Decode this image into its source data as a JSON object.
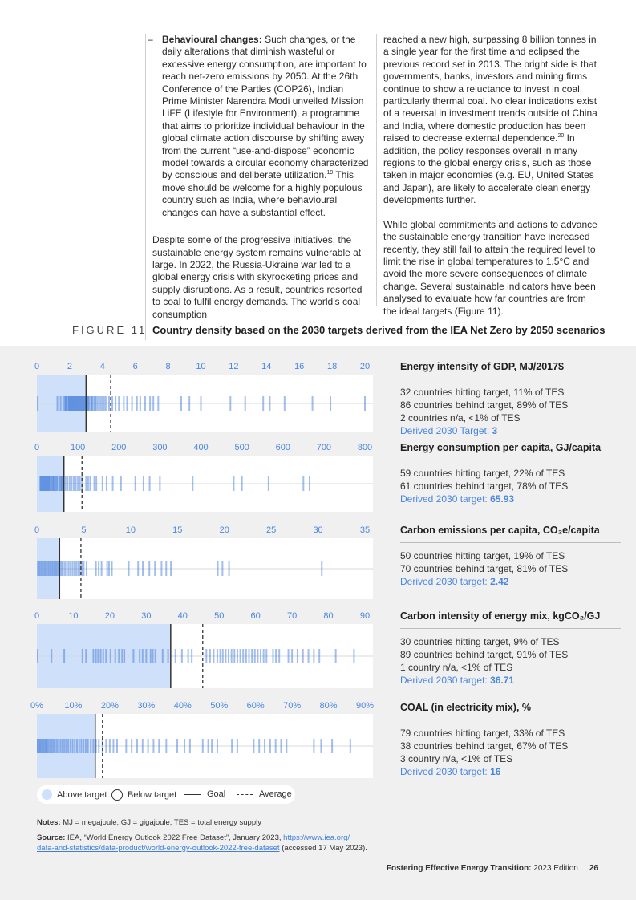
{
  "text": {
    "bullet_heading": "Behavioural changes:",
    "bullet_dash": "–",
    "bullet_body_1": "Such changes, or the daily alterations that diminish wasteful or excessive energy consumption, are important to reach net-zero emissions by 2050. At the 26th Conference of the Parties (COP26), Indian Prime Minister Narendra Modi unveiled Mission LiFE (Lifestyle for Environment), a programme that aims to prioritize individual behaviour in the global climate action discourse by shifting away from the current “use-and-dispose” economic model towards a circular economy characterized by conscious and deliberate utilization.",
    "bullet_sup": "19",
    "bullet_body_2": " This move should be welcome for a highly populous country such as India, where behavioural changes can have a substantial effect.",
    "left_para": "Despite some of the progressive initiatives, the sustainable energy system remains vulnerable at large. In 2022, the Russia-Ukraine war led to a global energy crisis with skyrocketing prices and supply disruptions. As a result, countries resorted to coal to fulfil energy demands. The world’s coal consumption",
    "right_para_1a": "reached a new high, surpassing 8 billion tonnes in a single year for the first time and eclipsed the previous record set in 2013. The bright side is that governments, banks, investors and mining firms continue to show a reluctance to invest in coal, particularly thermal coal. No clear indications exist of a reversal in investment trends outside of China and India, where domestic production has been raised to decrease external dependence.",
    "right_para_sup": "20",
    "right_para_1b": " In addition, the policy responses overall in many regions to the global energy crisis, such as those taken in major economies (e.g. EU, United States and Japan), are likely to accelerate clean energy developments further.",
    "right_para_2": "While global commitments and actions to advance the sustainable energy transition have increased recently, they still fail to attain the required level to limit the rise in global temperatures to 1.5°C and avoid the more severe consequences of climate change. Several sustainable indicators have been analysed to evaluate how far countries are from the ideal targets (Figure 11)."
  },
  "figure": {
    "label": "FIGURE 11",
    "title": "Country density based on the 2030 targets derived from the IEA Net Zero by 2050 scenarios"
  },
  "chart_data": [
    {
      "type": "strip",
      "title": "Energy intensity of GDP, MJ/2017$",
      "ticks": [
        "0",
        "2",
        "4",
        "6",
        "8",
        "10",
        "12",
        "14",
        "16",
        "18",
        "20"
      ],
      "xlim": [
        0,
        20
      ],
      "goal": 3,
      "average": 4.5,
      "values": [
        0.05,
        1.25,
        1.45,
        1.6,
        1.7,
        1.75,
        1.8,
        1.9,
        1.95,
        2.0,
        2.05,
        2.1,
        2.15,
        2.2,
        2.25,
        2.3,
        2.35,
        2.4,
        2.45,
        2.5,
        2.55,
        2.6,
        2.65,
        2.7,
        2.75,
        2.8,
        2.85,
        2.9,
        2.95,
        3.0,
        3.05,
        3.1,
        3.15,
        3.2,
        3.3,
        3.35,
        3.4,
        3.5,
        3.55,
        3.6,
        3.7,
        3.8,
        3.9,
        4.0,
        4.1,
        4.2,
        4.4,
        4.6,
        4.8,
        5.0,
        5.3,
        5.5,
        5.8,
        6.1,
        6.3,
        6.6,
        6.9,
        7.1,
        7.4,
        8.8,
        9.3,
        10.0,
        11.8,
        12.7,
        13.8,
        14.2,
        15.1,
        16.8,
        17.9,
        20.0
      ],
      "lines": [
        "32 countries hitting target, 11% of TES",
        "86 countries behind target, 89% of TES",
        "2 countries n/a, <1% of TES"
      ],
      "target_label": "Derived 2030 Target: ",
      "target_value": "3"
    },
    {
      "type": "strip",
      "title": "Energy consumption per capita, GJ/capita",
      "ticks": [
        "0",
        "100",
        "200",
        "300",
        "400",
        "500",
        "600",
        "700",
        "800"
      ],
      "xlim": [
        0,
        800
      ],
      "goal": 65.93,
      "average": 110,
      "values": [
        8,
        10,
        12,
        14,
        16,
        18,
        20,
        22,
        24,
        26,
        28,
        30,
        32,
        35,
        38,
        40,
        42,
        45,
        48,
        50,
        55,
        58,
        60,
        62,
        65,
        70,
        75,
        80,
        85,
        90,
        95,
        100,
        105,
        110,
        120,
        125,
        130,
        140,
        145,
        160,
        170,
        185,
        205,
        240,
        260,
        275,
        300,
        380,
        480,
        500,
        565,
        650,
        665
      ],
      "lines": [
        "59 countries hitting target, 22% of TES",
        "61 countries behind target, 78% of TES"
      ],
      "target_label": "Derived 2030 target: ",
      "target_value": "65.93"
    },
    {
      "type": "strip",
      "title": "Carbon emissions per capita, CO₂e/capita",
      "ticks": [
        "0",
        "5",
        "10",
        "15",
        "20",
        "25",
        "30",
        "35"
      ],
      "xlim": [
        0,
        35
      ],
      "goal": 2.42,
      "average": 4.7,
      "values": [
        0.1,
        0.25,
        0.4,
        0.55,
        0.7,
        0.85,
        1.0,
        1.15,
        1.3,
        1.45,
        1.6,
        1.75,
        1.9,
        2.05,
        2.2,
        2.35,
        2.5,
        2.65,
        2.8,
        3.0,
        3.2,
        3.4,
        3.6,
        3.8,
        4.0,
        4.2,
        4.4,
        4.6,
        4.8,
        5.0,
        5.3,
        6.3,
        6.6,
        6.9,
        7.5,
        7.7,
        8.0,
        9.8,
        10.8,
        11.3,
        12.0,
        12.6,
        13.3,
        13.8,
        14.3,
        19.3,
        19.8,
        20.5,
        30.4
      ],
      "lines": [
        "50 countries hitting target, 19% of TES",
        "70 countries behind target, 81% of TES"
      ],
      "target_label": "Derived 2030 target: ",
      "target_value": "2.42"
    },
    {
      "type": "strip",
      "title": "Carbon intensity of energy mix, kgCO₂/GJ",
      "ticks": [
        "0",
        "10",
        "20",
        "30",
        "40",
        "50",
        "60",
        "70",
        "80",
        "90"
      ],
      "xlim": [
        0,
        90
      ],
      "goal": 36.71,
      "average": 45.5,
      "values": [
        0.2,
        4.0,
        7.5,
        12.5,
        13.5,
        15.5,
        16.2,
        16.8,
        17.5,
        18.2,
        19.0,
        20.2,
        21.5,
        22.5,
        23.4,
        24.0,
        26.5,
        28.2,
        29.0,
        30.0,
        31.2,
        31.8,
        32.5,
        34.5,
        36.0,
        38.0,
        39.8,
        41.5,
        42.5,
        46.5,
        47.5,
        48.5,
        49.5,
        50.3,
        51.0,
        51.8,
        52.6,
        53.4,
        54.2,
        55.0,
        55.8,
        56.6,
        57.4,
        58.2,
        59.0,
        59.8,
        60.6,
        61.4,
        62.2,
        63.0,
        64.8,
        65.6,
        66.5,
        69.0,
        70.0,
        71.5,
        73.0,
        74.5,
        76.0,
        77.5,
        82.0,
        87.0
      ],
      "lines": [
        "30 countries hitting target, 9% of TES",
        "89 countries behind target, 91% of TES",
        "1 country n/a, <1% of TES"
      ],
      "target_label": "Derived 2030 target: ",
      "target_value": "36.71"
    },
    {
      "type": "strip",
      "title": "COAL (in electricity mix), %",
      "ticks": [
        "0%",
        "10%",
        "20%",
        "30%",
        "40%",
        "50%",
        "60%",
        "70%",
        "80%",
        "90%"
      ],
      "xlim": [
        0,
        90
      ],
      "goal": 16,
      "average": 18,
      "values": [
        0,
        0.3,
        0.6,
        0.9,
        1.2,
        1.5,
        1.8,
        2.1,
        2.4,
        2.7,
        3.0,
        3.4,
        3.8,
        4.2,
        4.6,
        5.0,
        5.5,
        6.0,
        6.5,
        7.0,
        7.5,
        8.0,
        8.6,
        9.2,
        9.8,
        10.4,
        11.0,
        11.6,
        12.2,
        12.8,
        13.4,
        14.0,
        14.8,
        15.5,
        16.2,
        17.0,
        18.0,
        19.0,
        20.0,
        21.0,
        22.0,
        24.5,
        26.0,
        27.5,
        29.0,
        30.5,
        32.0,
        33.5,
        35.5,
        38.5,
        40.5,
        42.0,
        45.5,
        47.0,
        48.0,
        49.5,
        53.5,
        55.0,
        59.5,
        61.0,
        62.5,
        64.0,
        65.5,
        67.0,
        68.5,
        76.0,
        78.0,
        81.0,
        86.0
      ],
      "lines": [
        "79 countries hitting target, 33% of TES",
        "38 countries behind target, 67% of TES",
        "3 country n/a, <1% of TES"
      ],
      "target_label": "Derived 2030 target: ",
      "target_value": "16"
    }
  ],
  "legend": {
    "above": "Above target",
    "below": "Below target",
    "goal": "Goal",
    "average": "Average"
  },
  "notes": {
    "notes_label": "Notes:",
    "notes_text": " MJ = megajoule; GJ = gigajoule; TES = total energy supply",
    "source_label": "Source:",
    "source_text": " IEA, “World Energy Outlook 2022 Free Dataset”, January 2023, ",
    "source_link_1": "https://www.iea.org/",
    "source_link_2": "data-and-statistics/data-product/world-energy-outlook-2022-free-dataset",
    "source_tail": " (accessed 17 May 2023)."
  },
  "footer": {
    "publication": "Fostering Effective Energy Transition:",
    "edition": " 2023 Edition",
    "page": "26"
  },
  "colors": {
    "accent": "#4a86e0",
    "above_fill": "#cfe0fb",
    "tick_blue": "#2f6fd6",
    "figure_bg": "#f0f0f0"
  }
}
